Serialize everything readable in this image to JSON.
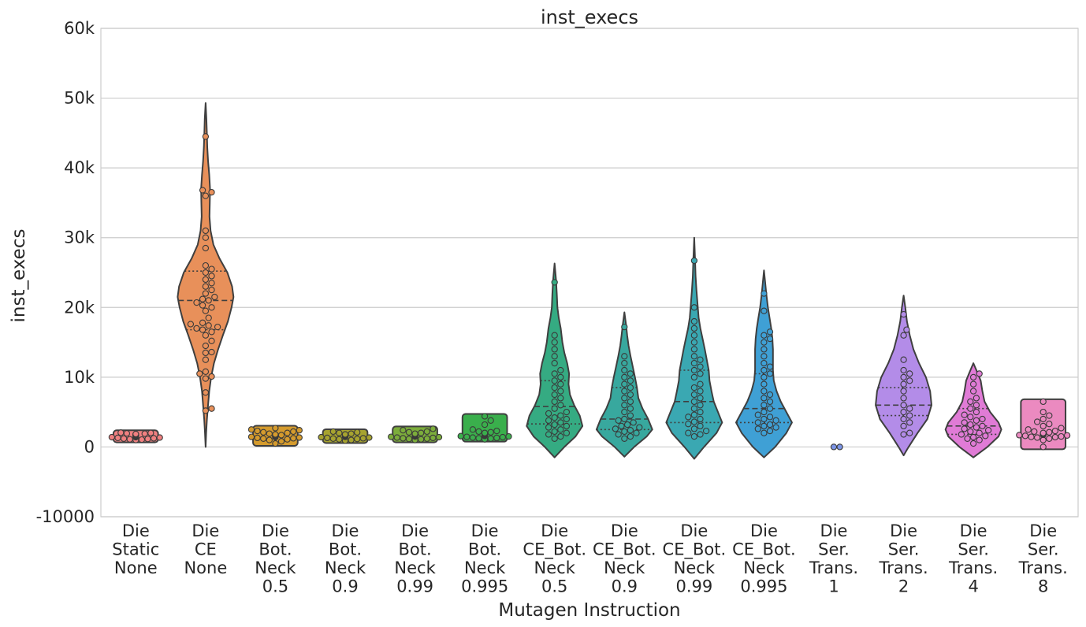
{
  "chart_data": {
    "type": "violin",
    "title": "inst_execs",
    "xlabel": "Mutagen Instruction",
    "ylabel": "inst_execs",
    "ylim": [
      -10000,
      60000
    ],
    "yticks": [
      -10000,
      0,
      10000,
      20000,
      30000,
      40000,
      50000,
      60000
    ],
    "ytick_labels": [
      "-10000",
      "0",
      "10k",
      "20k",
      "30k",
      "40k",
      "50k",
      "60k"
    ],
    "grid": true,
    "categories": [
      {
        "lines": [
          "Die",
          "Static",
          "None"
        ],
        "color": "#f08080",
        "points": [
          1200,
          1400,
          1600,
          1800,
          2000,
          1100,
          1300,
          1500,
          1700,
          1900,
          1000,
          1250,
          1450,
          1650,
          1850,
          2050,
          1150,
          1350,
          1550,
          1750,
          1950,
          1050,
          1400,
          1600
        ]
      },
      {
        "lines": [
          "Die",
          "CE",
          "None"
        ],
        "color": "#e8905a",
        "quartiles": [
          16800,
          21000,
          25200
        ],
        "violin": [
          [
            0,
            0.0
          ],
          [
            2000,
            0.02
          ],
          [
            4000,
            0.05
          ],
          [
            6000,
            0.09
          ],
          [
            8000,
            0.13
          ],
          [
            10000,
            0.2
          ],
          [
            12000,
            0.3
          ],
          [
            14000,
            0.45
          ],
          [
            16000,
            0.62
          ],
          [
            18000,
            0.8
          ],
          [
            20000,
            0.93
          ],
          [
            21500,
            1.0
          ],
          [
            23000,
            0.95
          ],
          [
            25000,
            0.78
          ],
          [
            27000,
            0.5
          ],
          [
            29000,
            0.28
          ],
          [
            31000,
            0.18
          ],
          [
            33000,
            0.14
          ],
          [
            35000,
            0.15
          ],
          [
            37000,
            0.16
          ],
          [
            39000,
            0.13
          ],
          [
            41000,
            0.09
          ],
          [
            43000,
            0.06
          ],
          [
            45000,
            0.045
          ],
          [
            47000,
            0.03
          ],
          [
            49300,
            0.0
          ]
        ],
        "points": [
          5200,
          5500,
          7800,
          9800,
          10100,
          10500,
          10800,
          12500,
          13500,
          13600,
          14500,
          15200,
          16000,
          16500,
          16800,
          17000,
          17200,
          17400,
          17600,
          17800,
          18500,
          19500,
          20000,
          20300,
          20700,
          21000,
          21200,
          21500,
          22000,
          22500,
          23000,
          23500,
          24000,
          24500,
          25000,
          25500,
          26000,
          28500,
          30000,
          31000,
          36000,
          36500,
          36800,
          44500
        ]
      },
      {
        "lines": [
          "Die",
          "Bot.",
          "Neck",
          "0.5"
        ],
        "color": "#d59b2d",
        "points": [
          500,
          800,
          1000,
          1100,
          1200,
          1300,
          1400,
          1500,
          1600,
          1700,
          1800,
          1900,
          2000,
          2100,
          2200,
          2300,
          2400,
          2500,
          2700,
          1250,
          1350,
          1450,
          1550,
          1650,
          1750
        ]
      },
      {
        "lines": [
          "Die",
          "Bot.",
          "Neck",
          "0.9"
        ],
        "color": "#a7a32f",
        "points": [
          900,
          1000,
          1100,
          1200,
          1300,
          1400,
          1500,
          1600,
          1700,
          1800,
          1900,
          2000,
          2100,
          2200,
          1150,
          1250,
          1350,
          1450,
          1550,
          1650,
          1750
        ]
      },
      {
        "lines": [
          "Die",
          "Bot.",
          "Neck",
          "0.99"
        ],
        "color": "#7cad3b",
        "points": [
          1000,
          1100,
          1200,
          1300,
          1400,
          1500,
          1600,
          1700,
          1800,
          1900,
          2000,
          2100,
          2200,
          2400,
          2600,
          1150,
          1250,
          1350,
          1450,
          1550,
          1650,
          1750,
          1850
        ]
      },
      {
        "lines": [
          "Die",
          "Bot.",
          "Neck",
          "0.995"
        ],
        "color": "#3aaf4c",
        "points": [
          1100,
          1200,
          1300,
          1400,
          1500,
          1600,
          1700,
          1800,
          1900,
          2000,
          2100,
          2200,
          2300,
          2500,
          3200,
          3800,
          4400,
          1250,
          1350,
          1450,
          1550,
          1650
        ]
      },
      {
        "lines": [
          "Die",
          "CE_Bot.",
          "Neck",
          "0.5"
        ],
        "color": "#35ab82",
        "quartiles": [
          3300,
          5800,
          9500
        ],
        "violin": [
          [
            -1500,
            0.0
          ],
          [
            0,
            0.35
          ],
          [
            1500,
            0.75
          ],
          [
            3000,
            1.0
          ],
          [
            4500,
            0.9
          ],
          [
            6000,
            0.7
          ],
          [
            7500,
            0.55
          ],
          [
            9000,
            0.5
          ],
          [
            10500,
            0.52
          ],
          [
            12000,
            0.45
          ],
          [
            13500,
            0.35
          ],
          [
            15000,
            0.28
          ],
          [
            17000,
            0.22
          ],
          [
            18500,
            0.15
          ],
          [
            20000,
            0.1
          ],
          [
            22000,
            0.08
          ],
          [
            24000,
            0.05
          ],
          [
            26300,
            0.0
          ]
        ],
        "points": [
          1200,
          1500,
          1800,
          2000,
          2200,
          2500,
          2800,
          3000,
          3200,
          3500,
          3800,
          4000,
          4200,
          4500,
          4800,
          5000,
          5500,
          6000,
          6500,
          7000,
          7500,
          8000,
          8500,
          9000,
          9500,
          10000,
          10500,
          11000,
          12000,
          13000,
          14000,
          15000,
          16000,
          23600
        ]
      },
      {
        "lines": [
          "Die",
          "CE_Bot.",
          "Neck",
          "0.9"
        ],
        "color": "#38a89e",
        "quartiles": [
          2500,
          4000,
          8500
        ],
        "violin": [
          [
            -1400,
            0.0
          ],
          [
            0,
            0.35
          ],
          [
            1500,
            0.8
          ],
          [
            2500,
            1.0
          ],
          [
            4000,
            0.85
          ],
          [
            5500,
            0.65
          ],
          [
            7000,
            0.5
          ],
          [
            8500,
            0.45
          ],
          [
            10000,
            0.38
          ],
          [
            11500,
            0.3
          ],
          [
            13000,
            0.22
          ],
          [
            14500,
            0.15
          ],
          [
            16000,
            0.1
          ],
          [
            17500,
            0.06
          ],
          [
            19300,
            0.0
          ]
        ],
        "points": [
          1200,
          1500,
          1800,
          2000,
          2200,
          2400,
          2600,
          2800,
          3000,
          3200,
          3500,
          3800,
          4000,
          4500,
          5000,
          5500,
          6000,
          6500,
          7000,
          7500,
          8000,
          8500,
          9000,
          9500,
          10000,
          10500,
          11000,
          12000,
          13000,
          17200
        ]
      },
      {
        "lines": [
          "Die",
          "CE_Bot.",
          "Neck",
          "0.99"
        ],
        "color": "#3aa8b2",
        "quartiles": [
          3500,
          6500,
          11000
        ],
        "violin": [
          [
            -1700,
            0.0
          ],
          [
            0,
            0.35
          ],
          [
            2000,
            0.8
          ],
          [
            3500,
            1.0
          ],
          [
            5000,
            0.85
          ],
          [
            6500,
            0.7
          ],
          [
            8000,
            0.62
          ],
          [
            9500,
            0.55
          ],
          [
            11000,
            0.52
          ],
          [
            12500,
            0.45
          ],
          [
            14000,
            0.38
          ],
          [
            15500,
            0.3
          ],
          [
            17000,
            0.22
          ],
          [
            18500,
            0.16
          ],
          [
            20500,
            0.12
          ],
          [
            22500,
            0.08
          ],
          [
            24500,
            0.05
          ],
          [
            27000,
            0.03
          ],
          [
            30000,
            0.0
          ]
        ],
        "points": [
          1500,
          1800,
          2000,
          2300,
          2600,
          3000,
          3300,
          3600,
          4000,
          4300,
          4600,
          5000,
          5500,
          6000,
          6500,
          7000,
          7500,
          8000,
          8500,
          9000,
          10000,
          10500,
          11000,
          11500,
          12000,
          12500,
          13000,
          14000,
          15000,
          16000,
          17000,
          18000,
          20000,
          26700
        ]
      },
      {
        "lines": [
          "Die",
          "CE_Bot.",
          "Neck",
          "0.995"
        ],
        "color": "#3fa0d5",
        "quartiles": [
          3500,
          5500,
          10500
        ],
        "violin": [
          [
            -1500,
            0.0
          ],
          [
            0,
            0.4
          ],
          [
            2000,
            0.8
          ],
          [
            3500,
            1.0
          ],
          [
            5000,
            0.8
          ],
          [
            6500,
            0.6
          ],
          [
            8000,
            0.45
          ],
          [
            9500,
            0.35
          ],
          [
            11000,
            0.32
          ],
          [
            12500,
            0.32
          ],
          [
            14000,
            0.32
          ],
          [
            15500,
            0.3
          ],
          [
            17000,
            0.26
          ],
          [
            18500,
            0.2
          ],
          [
            20000,
            0.14
          ],
          [
            22000,
            0.08
          ],
          [
            25300,
            0.0
          ]
        ],
        "points": [
          2000,
          2300,
          2600,
          2800,
          3000,
          3200,
          3500,
          3800,
          4000,
          4300,
          4600,
          5000,
          5500,
          6000,
          6500,
          7000,
          7500,
          8000,
          9000,
          10000,
          10500,
          11000,
          11500,
          12000,
          13000,
          14000,
          15000,
          15500,
          16000,
          16500,
          19500,
          22000
        ]
      },
      {
        "lines": [
          "Die",
          "Ser.",
          "Trans.",
          "1"
        ],
        "color": "#7c95e6",
        "points": [
          0,
          0
        ]
      },
      {
        "lines": [
          "Die",
          "Ser.",
          "Trans.",
          "2"
        ],
        "color": "#b38ce8",
        "quartiles": [
          4500,
          6000,
          8500
        ],
        "violin": [
          [
            -1200,
            0.0
          ],
          [
            0,
            0.18
          ],
          [
            2000,
            0.5
          ],
          [
            4000,
            0.85
          ],
          [
            6000,
            1.0
          ],
          [
            8000,
            0.95
          ],
          [
            10000,
            0.8
          ],
          [
            12000,
            0.55
          ],
          [
            14000,
            0.35
          ],
          [
            16000,
            0.22
          ],
          [
            18000,
            0.12
          ],
          [
            20000,
            0.06
          ],
          [
            21700,
            0.0
          ]
        ],
        "points": [
          1800,
          2000,
          3000,
          3500,
          4000,
          4500,
          5000,
          5500,
          6000,
          7000,
          8000,
          9000,
          9500,
          10000,
          10500,
          11000,
          12500,
          16000,
          16800,
          19000
        ]
      },
      {
        "lines": [
          "Die",
          "Ser.",
          "Trans.",
          "4"
        ],
        "color": "#e07bd6",
        "quartiles": [
          1800,
          3000,
          5500
        ],
        "violin": [
          [
            -1500,
            0.0
          ],
          [
            0,
            0.5
          ],
          [
            1500,
            0.9
          ],
          [
            2500,
            1.0
          ],
          [
            3500,
            0.9
          ],
          [
            5000,
            0.6
          ],
          [
            6500,
            0.4
          ],
          [
            8000,
            0.32
          ],
          [
            9500,
            0.26
          ],
          [
            10500,
            0.16
          ],
          [
            12000,
            0.0
          ]
        ],
        "points": [
          500,
          1000,
          1200,
          1400,
          1600,
          1800,
          2000,
          2200,
          2400,
          2600,
          2800,
          3000,
          3200,
          3500,
          3800,
          4000,
          4300,
          4600,
          5000,
          5500,
          6000,
          6500,
          7000,
          8000,
          9000,
          10000,
          10500
        ]
      },
      {
        "lines": [
          "Die",
          "Ser.",
          "Trans.",
          "8"
        ],
        "color": "#eb8ac0",
        "points": [
          0,
          1000,
          1200,
          1400,
          1500,
          1600,
          1700,
          1800,
          1900,
          2000,
          2100,
          2200,
          2300,
          2500,
          2700,
          3000,
          3300,
          3600,
          4000,
          4500,
          5000,
          6500,
          1350,
          1450,
          1650,
          1750
        ]
      }
    ]
  }
}
